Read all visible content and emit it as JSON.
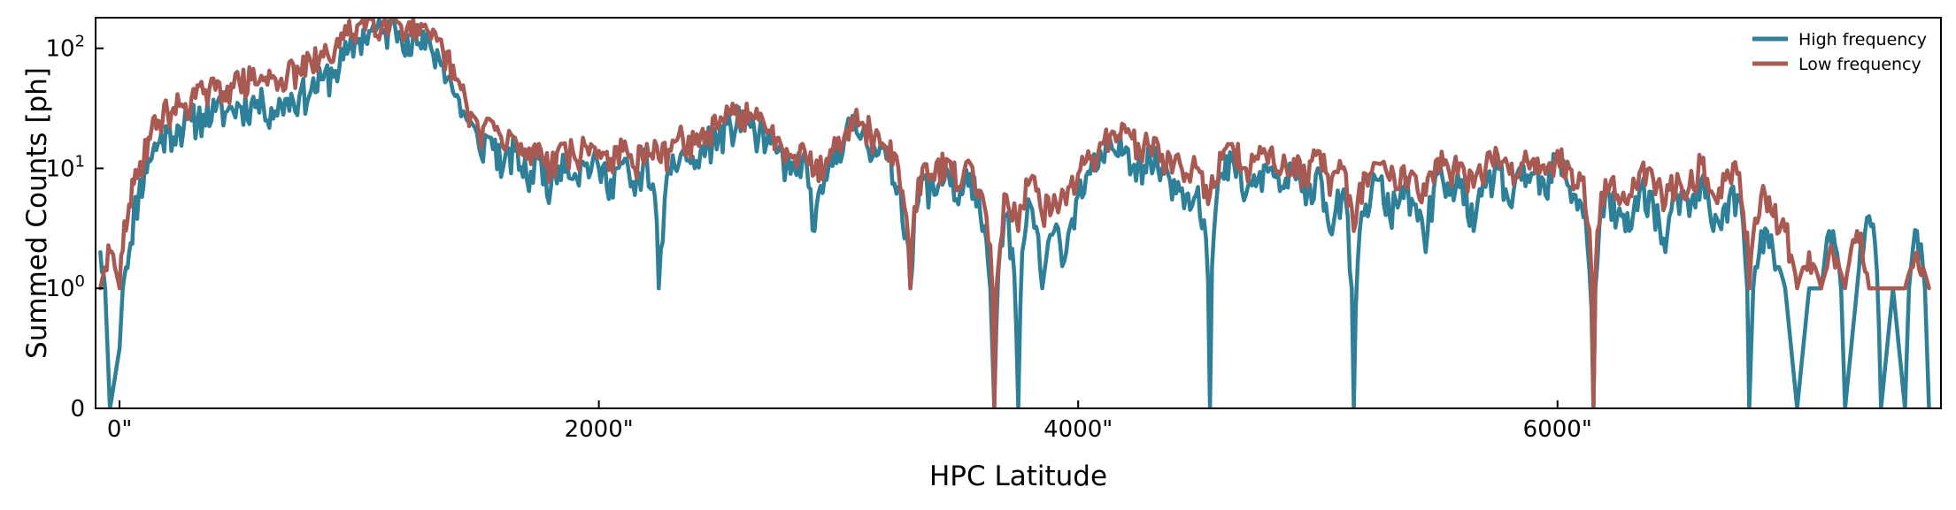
{
  "chart_data": {
    "type": "line",
    "xlabel": "HPC Latitude",
    "ylabel": "Summed Counts [ph]",
    "xlim": [
      -100,
      7600
    ],
    "ylim": [
      0,
      180
    ],
    "yscale": "symlog",
    "x_ticks": [
      {
        "value": 0,
        "label": "0\""
      },
      {
        "value": 2000,
        "label": "2000\""
      },
      {
        "value": 4000,
        "label": "4000\""
      },
      {
        "value": 6000,
        "label": "6000\""
      }
    ],
    "y_ticks": [
      {
        "value": 0,
        "base": "0",
        "exp": ""
      },
      {
        "value": 1,
        "base": "10",
        "exp": "0"
      },
      {
        "value": 10,
        "base": "10",
        "exp": "1"
      },
      {
        "value": 100,
        "base": "10",
        "exp": "2"
      }
    ],
    "legend_position": "top-right",
    "grid": false,
    "series": [
      {
        "name": "High frequency",
        "color": "#2e7f98",
        "x": [
          -80,
          -40,
          0,
          40,
          80,
          120,
          160,
          200,
          250,
          300,
          350,
          400,
          450,
          500,
          550,
          600,
          650,
          700,
          750,
          800,
          850,
          900,
          950,
          1000,
          1050,
          1100,
          1150,
          1200,
          1250,
          1300,
          1350,
          1400,
          1450,
          1500,
          1550,
          1600,
          1650,
          1700,
          1750,
          1800,
          1850,
          1900,
          1950,
          2000,
          2050,
          2100,
          2150,
          2200,
          2250,
          2300,
          2350,
          2400,
          2450,
          2500,
          2550,
          2600,
          2650,
          2700,
          2750,
          2800,
          2850,
          2900,
          2950,
          3000,
          3050,
          3100,
          3150,
          3200,
          3250,
          3300,
          3350,
          3400,
          3450,
          3500,
          3550,
          3600,
          3650,
          3700,
          3750,
          3800,
          3850,
          3900,
          3950,
          4000,
          4050,
          4100,
          4150,
          4200,
          4250,
          4300,
          4350,
          4400,
          4450,
          4500,
          4550,
          4600,
          4650,
          4700,
          4750,
          4800,
          4850,
          4900,
          4950,
          5000,
          5050,
          5100,
          5150,
          5200,
          5250,
          5300,
          5350,
          5400,
          5450,
          5500,
          5550,
          5600,
          5650,
          5700,
          5750,
          5800,
          5850,
          5900,
          5950,
          6000,
          6050,
          6100,
          6150,
          6200,
          6250,
          6300,
          6350,
          6400,
          6450,
          6500,
          6550,
          6600,
          6650,
          6700,
          6750,
          6800,
          6850,
          6900,
          6950,
          7000,
          7050,
          7100,
          7150,
          7200,
          7250,
          7300,
          7350,
          7400,
          7450,
          7500,
          7550
        ],
        "y": [
          2,
          0,
          0.5,
          2,
          6,
          12,
          16,
          20,
          22,
          25,
          28,
          30,
          30,
          33,
          35,
          34,
          30,
          38,
          40,
          45,
          55,
          65,
          90,
          120,
          140,
          135,
          150,
          130,
          110,
          100,
          75,
          40,
          25,
          15,
          18,
          10,
          14,
          8,
          12,
          7,
          13,
          9,
          11,
          10,
          8,
          11,
          6,
          12,
          1,
          9,
          14,
          10,
          16,
          18,
          22,
          25,
          20,
          16,
          14,
          9,
          12,
          3,
          8,
          16,
          22,
          20,
          15,
          12,
          7,
          1,
          8,
          6,
          10,
          5,
          9,
          3,
          0,
          4,
          0,
          5,
          1,
          3,
          2,
          6,
          9,
          12,
          14,
          15,
          11,
          12,
          10,
          8,
          6,
          7,
          0,
          9,
          11,
          6,
          8,
          10,
          7,
          9,
          5,
          10,
          3,
          6,
          0,
          5,
          8,
          4,
          7,
          5,
          2,
          9,
          6,
          8,
          3,
          7,
          10,
          5,
          8,
          9,
          6,
          12,
          7,
          5,
          0,
          6,
          4,
          3,
          7,
          5,
          2,
          6,
          4,
          8,
          3,
          5,
          6,
          0,
          3,
          2,
          1,
          0,
          1,
          1,
          3,
          0,
          1,
          4,
          0,
          1,
          0,
          3,
          0
        ],
        "noise": 0.35,
        "seed": 11
      },
      {
        "name": "Low frequency",
        "color": "#a85a52",
        "x": [
          -80,
          -40,
          0,
          40,
          80,
          120,
          160,
          200,
          250,
          300,
          350,
          400,
          450,
          500,
          550,
          600,
          650,
          700,
          750,
          800,
          850,
          900,
          950,
          1000,
          1050,
          1100,
          1150,
          1200,
          1250,
          1300,
          1350,
          1400,
          1450,
          1500,
          1550,
          1600,
          1650,
          1700,
          1750,
          1800,
          1850,
          1900,
          1950,
          2000,
          2050,
          2100,
          2150,
          2200,
          2250,
          2300,
          2350,
          2400,
          2450,
          2500,
          2550,
          2600,
          2650,
          2700,
          2750,
          2800,
          2850,
          2900,
          2950,
          3000,
          3050,
          3100,
          3150,
          3200,
          3250,
          3300,
          3350,
          3400,
          3450,
          3500,
          3550,
          3600,
          3650,
          3700,
          3750,
          3800,
          3850,
          3900,
          3950,
          4000,
          4050,
          4100,
          4150,
          4200,
          4250,
          4300,
          4350,
          4400,
          4450,
          4500,
          4550,
          4600,
          4650,
          4700,
          4750,
          4800,
          4850,
          4900,
          4950,
          5000,
          5050,
          5100,
          5150,
          5200,
          5250,
          5300,
          5350,
          5400,
          5450,
          5500,
          5550,
          5600,
          5650,
          5700,
          5750,
          5800,
          5850,
          5900,
          5950,
          6000,
          6050,
          6100,
          6150,
          6200,
          6250,
          6300,
          6350,
          6400,
          6450,
          6500,
          6550,
          6600,
          6650,
          6700,
          6750,
          6800,
          6850,
          6900,
          6950,
          7000,
          7050,
          7100,
          7150,
          7200,
          7250,
          7300,
          7350,
          7400,
          7450,
          7500,
          7550
        ],
        "y": [
          1,
          2,
          1,
          5,
          9,
          18,
          25,
          30,
          33,
          38,
          42,
          45,
          48,
          52,
          55,
          54,
          56,
          60,
          65,
          75,
          85,
          100,
          130,
          160,
          175,
          165,
          180,
          150,
          130,
          120,
          95,
          55,
          32,
          20,
          25,
          15,
          18,
          12,
          16,
          10,
          16,
          12,
          15,
          14,
          12,
          14,
          10,
          16,
          12,
          14,
          18,
          16,
          20,
          22,
          28,
          30,
          26,
          20,
          18,
          13,
          16,
          9,
          12,
          18,
          26,
          24,
          18,
          15,
          10,
          1,
          10,
          8,
          12,
          7,
          11,
          6,
          0,
          6,
          3,
          8,
          4,
          6,
          5,
          9,
          12,
          16,
          20,
          20,
          16,
          15,
          13,
          11,
          9,
          10,
          6,
          12,
          14,
          10,
          12,
          14,
          10,
          12,
          8,
          14,
          6,
          10,
          3,
          9,
          11,
          8,
          10,
          9,
          6,
          12,
          9,
          11,
          7,
          10,
          13,
          9,
          11,
          12,
          9,
          14,
          10,
          8,
          0,
          8,
          6,
          6,
          10,
          8,
          5,
          9,
          7,
          11,
          6,
          8,
          9,
          1,
          6,
          4,
          3,
          1,
          2,
          1,
          2,
          1,
          3,
          1,
          1,
          1,
          1,
          2,
          1
        ],
        "noise": 0.3,
        "seed": 29
      }
    ]
  }
}
